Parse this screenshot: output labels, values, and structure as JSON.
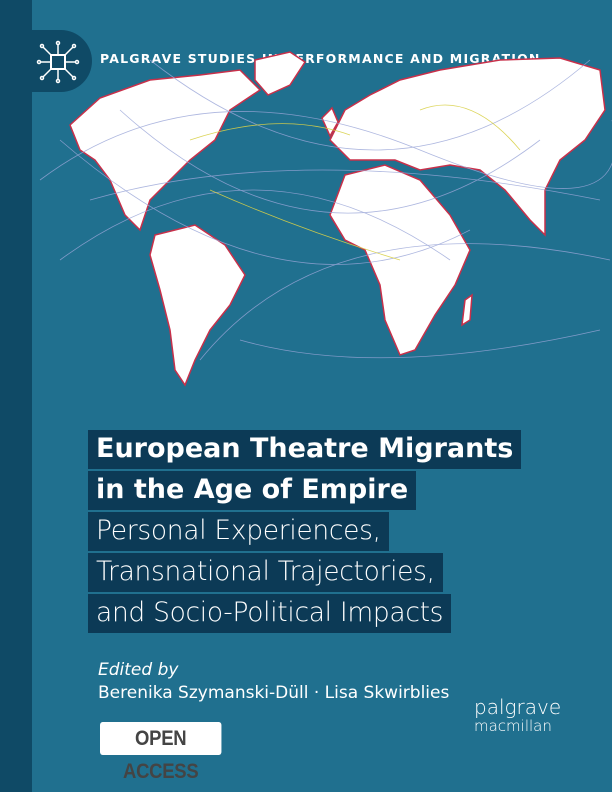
{
  "series": {
    "title": "PALGRAVE STUDIES IN PERFORMANCE AND MIGRATION",
    "logo_icon": "network-square-icon"
  },
  "book": {
    "title_lines": [
      "European Theatre Migrants",
      "in the Age of Empire"
    ],
    "subtitle_lines": [
      "Personal Experiences,",
      "Transnational Trajectories,",
      "and Socio-Political Impacts"
    ],
    "edited_by": "Edited by",
    "editors": "Berenika Szymanski-Düll · Lisa Skwirblies"
  },
  "badge": {
    "open_access": "OPEN ACCESS"
  },
  "publisher": {
    "line1": "palgrave",
    "line2": "macmillan"
  },
  "colors": {
    "background": "#20708f",
    "spine": "#0f4a66",
    "title_band": "#0c3a56",
    "map_land": "#ffffff",
    "map_outline": "#c8304a"
  }
}
